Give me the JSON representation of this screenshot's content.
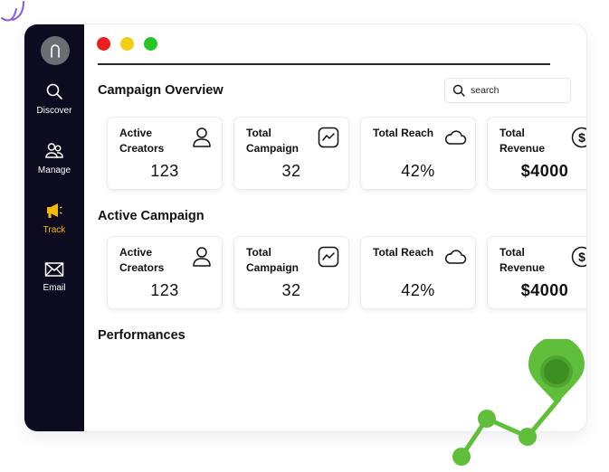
{
  "sidebar": {
    "items": [
      {
        "label": "Discover",
        "icon": "search-icon",
        "active": false
      },
      {
        "label": "Manage",
        "icon": "users-icon",
        "active": false
      },
      {
        "label": "Track",
        "icon": "megaphone-icon",
        "active": true
      },
      {
        "label": "Email",
        "icon": "mail-icon",
        "active": false
      }
    ]
  },
  "header": {
    "title": "Campaign Overview",
    "search_placeholder": "search"
  },
  "sections": {
    "overview_title": "Campaign Overview",
    "active_title": "Active Campaign",
    "performances_title": "Performances"
  },
  "cards": [
    {
      "label": "Active Creators",
      "value": "123",
      "icon": "user-icon"
    },
    {
      "label": "Total Campaign",
      "value": "32",
      "icon": "trend-icon"
    },
    {
      "label": "Total Reach",
      "value": "42%",
      "icon": "cloud-icon"
    },
    {
      "label": "Total Revenue",
      "value": "$4000",
      "icon": "dollar-icon"
    }
  ],
  "colors": {
    "sidebar_bg": "#0d0b1f",
    "active_accent": "#f2b80a",
    "window_red": "#ee1e1e",
    "window_yellow": "#f3cd14",
    "window_green": "#27c627",
    "chart_green": "#5fbf3b"
  }
}
